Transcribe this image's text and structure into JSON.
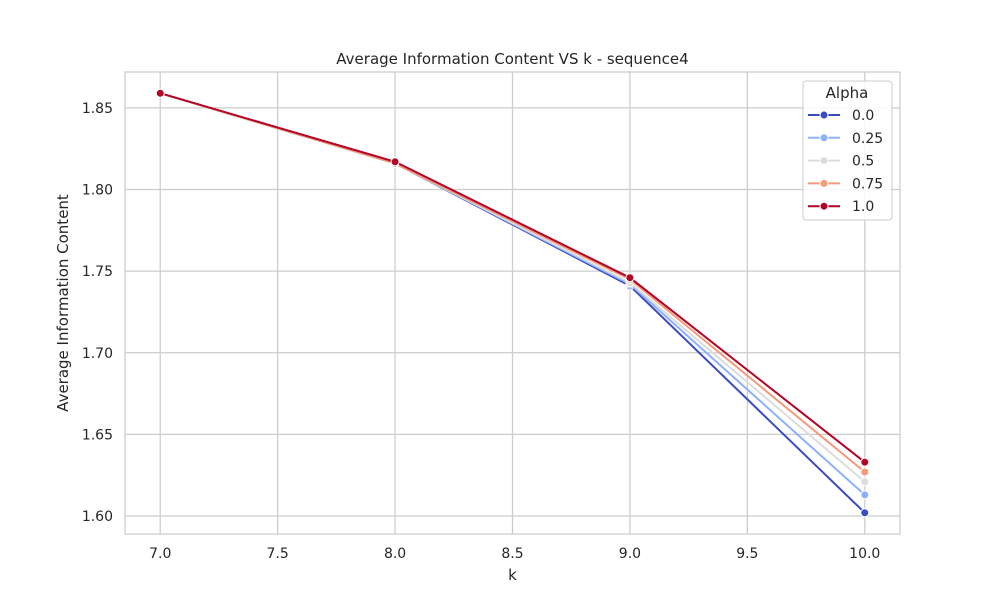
{
  "chart_data": {
    "type": "line",
    "title": "Average Information Content VS k - sequence4",
    "xlabel": "k",
    "ylabel": "Average Information Content",
    "xlim": [
      6.85,
      10.15
    ],
    "ylim": [
      1.589,
      1.872
    ],
    "x_ticks": [
      "7.0",
      "7.5",
      "8.0",
      "8.5",
      "9.0",
      "9.5",
      "10.0"
    ],
    "y_ticks": [
      "1.60",
      "1.65",
      "1.70",
      "1.75",
      "1.80",
      "1.85"
    ],
    "grid": true,
    "legend": {
      "title": "Alpha",
      "position": "top-right"
    },
    "x": [
      7,
      8,
      9,
      10
    ],
    "series": [
      {
        "name": "0.0",
        "color": "#3b4cc0",
        "values": [
          1.859,
          1.816,
          1.741,
          1.602
        ]
      },
      {
        "name": "0.25",
        "color": "#8db0fe",
        "values": [
          1.859,
          1.816,
          1.742,
          1.613
        ]
      },
      {
        "name": "0.5",
        "color": "#dddcdc",
        "values": [
          1.859,
          1.816,
          1.743,
          1.621
        ]
      },
      {
        "name": "0.75",
        "color": "#f49a7b",
        "values": [
          1.859,
          1.816,
          1.745,
          1.627
        ]
      },
      {
        "name": "1.0",
        "color": "#b40426",
        "values": [
          1.859,
          1.817,
          1.746,
          1.633
        ]
      }
    ]
  }
}
